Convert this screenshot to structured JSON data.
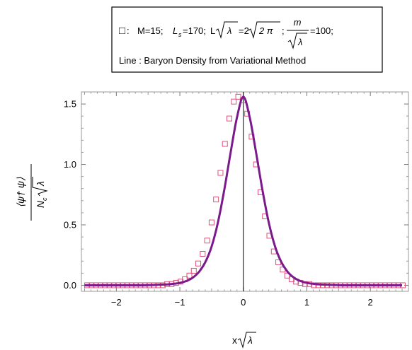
{
  "chart_data": {
    "type": "scatter",
    "legend": {
      "square_glyph": "□",
      "line1": {
        "sep": " : ",
        "M": "M=15;",
        "Ls_L": "L",
        "Ls_sub": "s",
        "Ls_val": "=170;",
        "L_part": "L",
        "lambda": "λ",
        "eq2": "=2",
        "two_pi": "2 π",
        "semi": ";",
        "m": "m",
        "eq100": "=100;"
      },
      "line2": "Line : Baryon Density from Variational Method"
    },
    "ylabel": {
      "numerator": "⟨ψ† ψ⟩",
      "den_N": "N",
      "den_sub": "c",
      "den_lambda": "λ"
    },
    "xlabel": {
      "x": "x",
      "lambda": "λ"
    },
    "xlim": [
      -2.55,
      2.6
    ],
    "ylim": [
      -0.05,
      1.6
    ],
    "xticks": [
      -2,
      -1,
      0,
      1,
      2
    ],
    "xtick_labels": [
      "−2",
      "−1",
      "0",
      "1",
      "2"
    ],
    "yticks": [
      0.0,
      0.5,
      1.0,
      1.5
    ],
    "ytick_labels": [
      "0.0",
      "0.5",
      "1.0",
      "1.5"
    ],
    "series": [
      {
        "kind": "markers",
        "color": "#e0507a",
        "x": [
          -2.46,
          -2.39,
          -2.32,
          -2.25,
          -2.18,
          -2.11,
          -2.04,
          -1.97,
          -1.9,
          -1.83,
          -1.76,
          -1.69,
          -1.62,
          -1.55,
          -1.48,
          -1.41,
          -1.34,
          -1.27,
          -1.2,
          -1.13,
          -1.06,
          -0.99,
          -0.92,
          -0.85,
          -0.78,
          -0.71,
          -0.64,
          -0.57,
          -0.5,
          -0.43,
          -0.36,
          -0.29,
          -0.22,
          -0.15,
          -0.08,
          -0.01,
          0.06,
          0.13,
          0.2,
          0.27,
          0.34,
          0.41,
          0.48,
          0.55,
          0.62,
          0.69,
          0.76,
          0.83,
          0.9,
          0.97,
          1.04,
          1.11,
          1.18,
          1.25,
          1.32,
          1.39,
          1.46,
          1.53,
          1.6,
          1.67,
          1.74,
          1.81,
          1.88,
          1.95,
          2.02,
          2.09,
          2.16,
          2.23,
          2.3,
          2.37,
          2.44,
          2.51
        ],
        "y": [
          0,
          0,
          0,
          0,
          0,
          0,
          0,
          0,
          0,
          0,
          0,
          0,
          0,
          0,
          0,
          0,
          0,
          0,
          0.01,
          0.01,
          0.02,
          0.03,
          0.05,
          0.08,
          0.12,
          0.18,
          0.26,
          0.37,
          0.52,
          0.71,
          0.93,
          1.17,
          1.38,
          1.52,
          1.56,
          1.53,
          1.42,
          1.23,
          1.0,
          0.77,
          0.57,
          0.41,
          0.28,
          0.19,
          0.13,
          0.08,
          0.05,
          0.03,
          0.02,
          0.01,
          0.01,
          0,
          0,
          0,
          0,
          0,
          0,
          0,
          0,
          0,
          0,
          0,
          0,
          0,
          0,
          0,
          0,
          0,
          0,
          0,
          0,
          0
        ]
      },
      {
        "kind": "line",
        "color": "#7a1a8c",
        "x": [
          -2.5,
          -2.2,
          -1.9,
          -1.6,
          -1.4,
          -1.2,
          -1.1,
          -1.0,
          -0.9,
          -0.8,
          -0.7,
          -0.6,
          -0.5,
          -0.4,
          -0.3,
          -0.2,
          -0.1,
          0.0,
          0.1,
          0.2,
          0.3,
          0.4,
          0.5,
          0.6,
          0.7,
          0.8,
          0.9,
          1.0,
          1.1,
          1.2,
          1.4,
          1.6,
          1.9,
          2.2,
          2.5
        ],
        "y": [
          0.0,
          0.0,
          0.0,
          0.0,
          0.003,
          0.007,
          0.012,
          0.02,
          0.035,
          0.062,
          0.11,
          0.19,
          0.32,
          0.52,
          0.79,
          1.1,
          1.39,
          1.56,
          1.39,
          1.1,
          0.79,
          0.52,
          0.32,
          0.19,
          0.11,
          0.062,
          0.035,
          0.02,
          0.012,
          0.007,
          0.003,
          0.0,
          0.0,
          0.0,
          0.0
        ]
      }
    ]
  }
}
